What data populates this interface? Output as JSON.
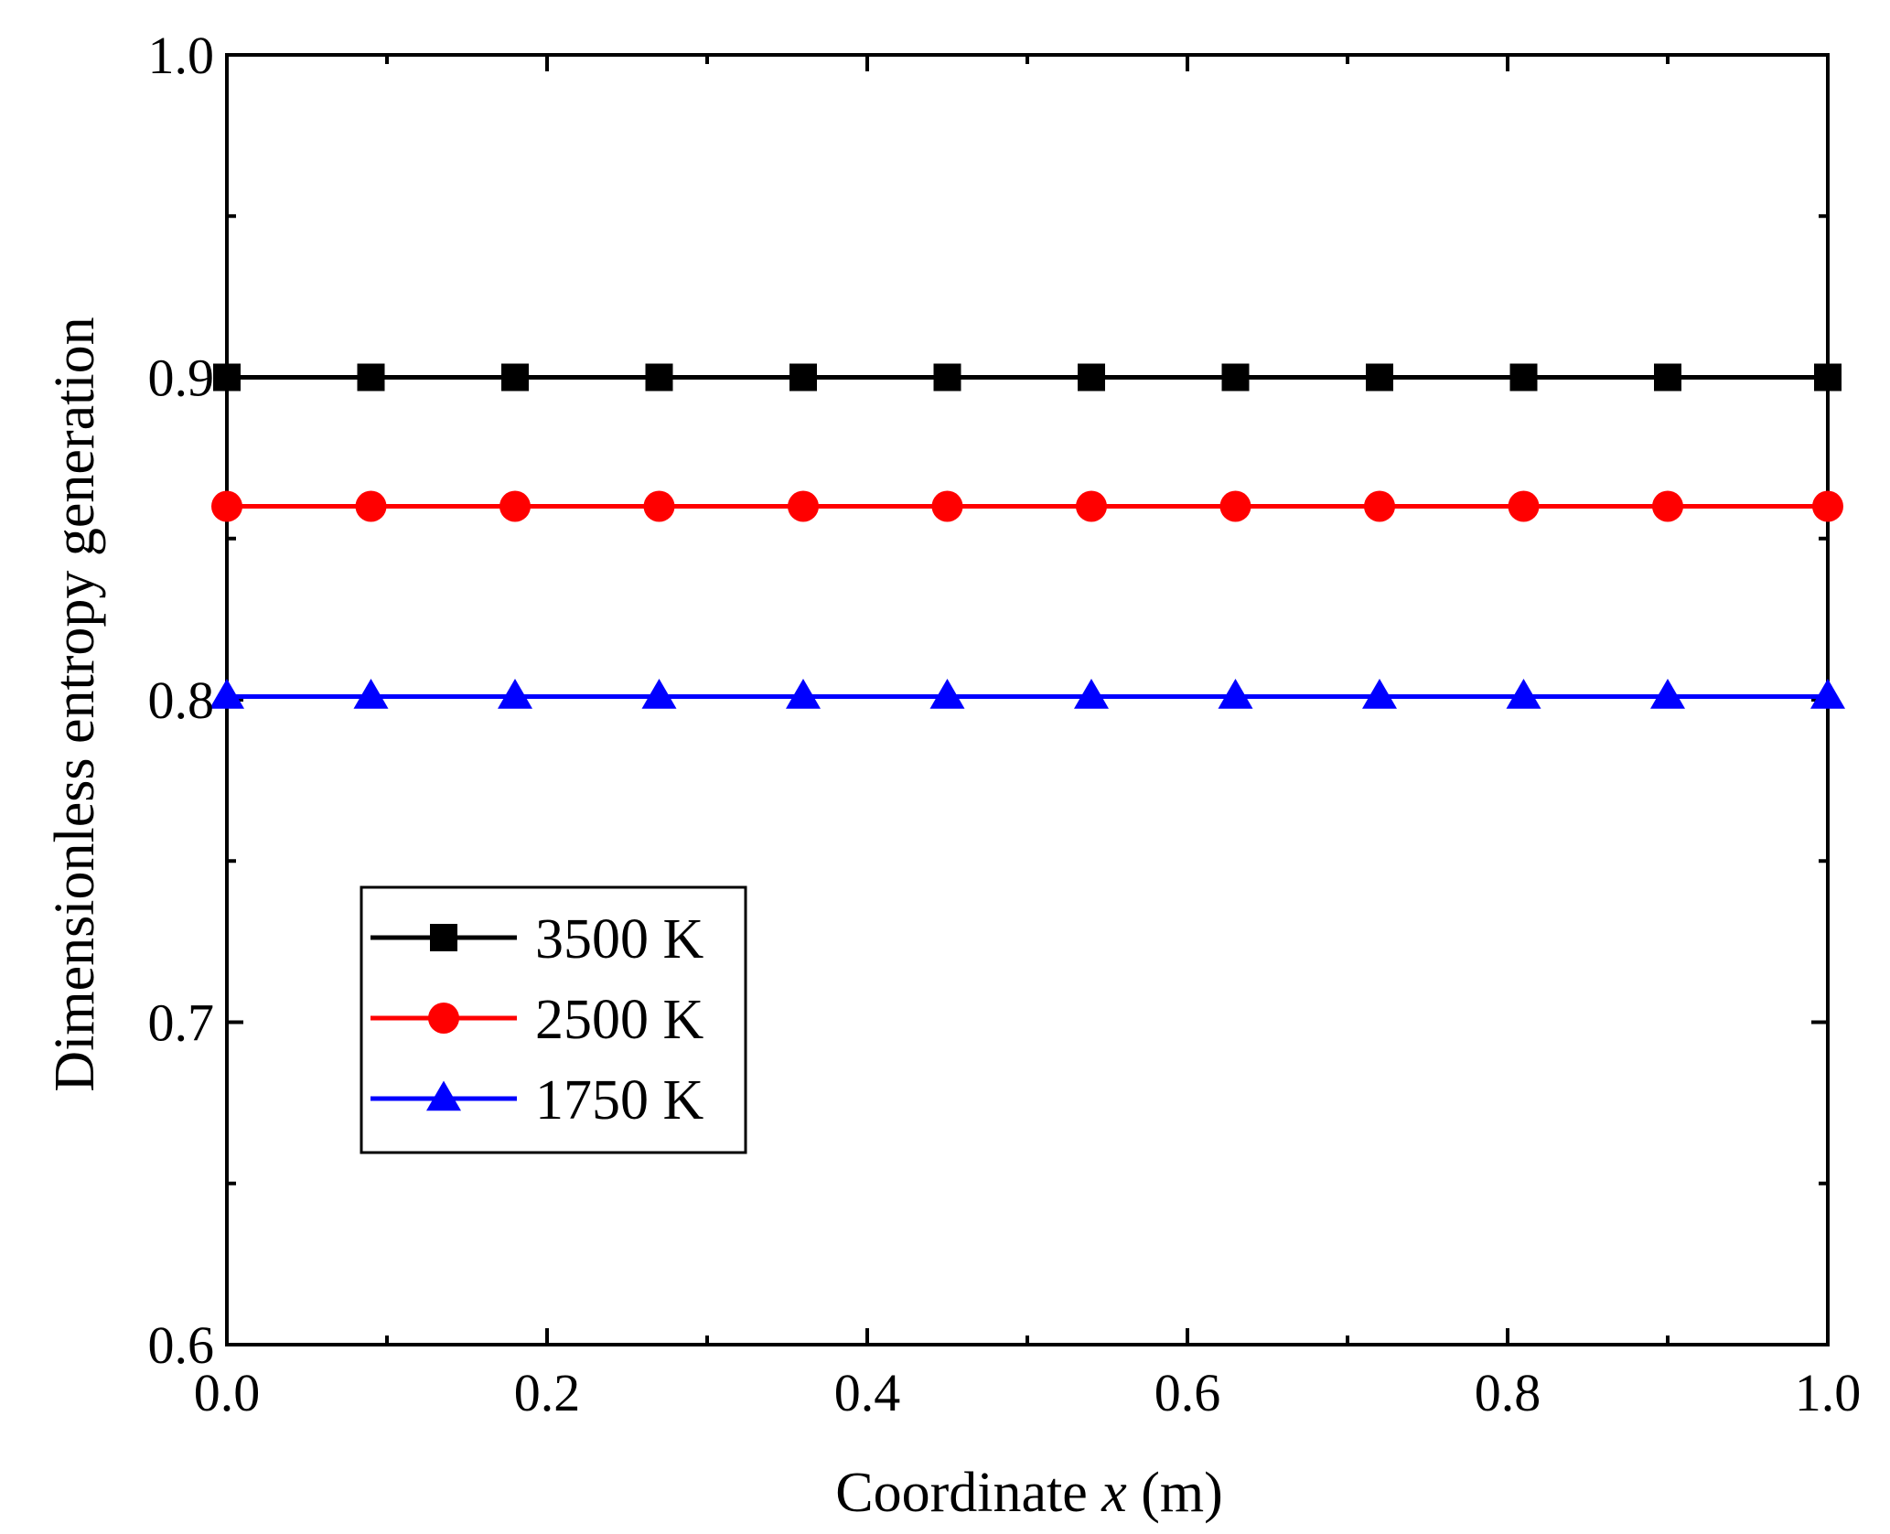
{
  "chart_data": {
    "type": "line",
    "title": "",
    "xlabel": {
      "prefix": "Coordinate ",
      "var": "x",
      "suffix": " (m)"
    },
    "ylabel": "Dimensionless entropy generation",
    "xlim": [
      0.0,
      1.0
    ],
    "ylim": [
      0.6,
      1.0
    ],
    "x_ticks": [
      "0.0",
      "0.2",
      "0.4",
      "0.6",
      "0.8",
      "1.0"
    ],
    "y_ticks": [
      "0.6",
      "0.7",
      "0.8",
      "0.9",
      "1.0"
    ],
    "x": [
      0.0,
      0.09,
      0.18,
      0.27,
      0.36,
      0.45,
      0.54,
      0.63,
      0.72,
      0.81,
      0.9,
      1.0
    ],
    "legend_position": "lower-left",
    "series": [
      {
        "name": "3500 K",
        "color": "#000000",
        "marker": "square",
        "values": [
          0.9,
          0.9,
          0.9,
          0.9,
          0.9,
          0.9,
          0.9,
          0.9,
          0.9,
          0.9,
          0.9,
          0.9
        ]
      },
      {
        "name": "2500 K",
        "color": "#ff0000",
        "marker": "circle",
        "values": [
          0.86,
          0.86,
          0.86,
          0.86,
          0.86,
          0.86,
          0.86,
          0.86,
          0.86,
          0.86,
          0.86,
          0.86
        ]
      },
      {
        "name": "1750 K",
        "color": "#0000ff",
        "marker": "triangle",
        "values": [
          0.801,
          0.801,
          0.801,
          0.801,
          0.801,
          0.801,
          0.801,
          0.801,
          0.801,
          0.801,
          0.801,
          0.801
        ]
      }
    ]
  }
}
